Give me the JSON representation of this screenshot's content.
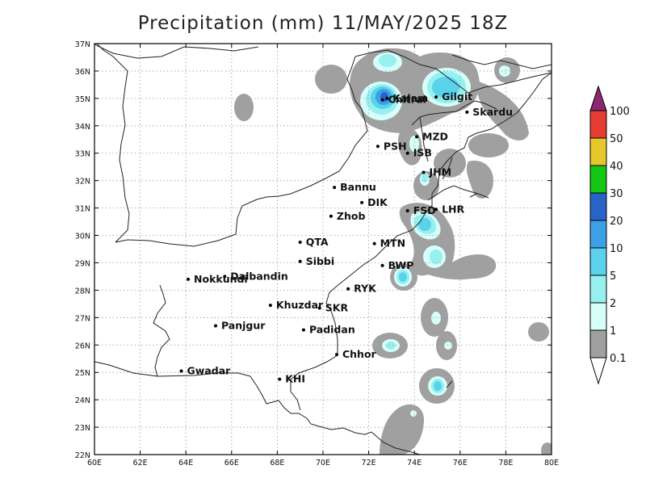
{
  "title": "Precipitation (mm) 11/MAY/2025 18Z",
  "axes": {
    "lon_labels": [
      "60E",
      "62E",
      "64E",
      "66E",
      "68E",
      "70E",
      "72E",
      "74E",
      "76E",
      "78E",
      "80E"
    ],
    "lat_labels": [
      "22N",
      "23N",
      "24N",
      "25N",
      "26N",
      "27N",
      "28N",
      "29N",
      "30N",
      "31N",
      "32N",
      "33N",
      "34N",
      "35N",
      "36N",
      "37N"
    ]
  },
  "colorbar": {
    "levels": [
      "0.1",
      "1",
      "2",
      "5",
      "10",
      "20",
      "30",
      "40",
      "50",
      "100"
    ],
    "colors": [
      "#a0a0a0",
      "#d7fffa",
      "#96f0f0",
      "#5ad2ec",
      "#3ca0e6",
      "#2864c8",
      "#15c715",
      "#e6c82d",
      "#e63c32",
      "#8c2873"
    ]
  },
  "cities": [
    {
      "name": "Chitral",
      "lon": 72.6,
      "lat": 34.95
    },
    {
      "name": "Gilgit",
      "lon": 74.95,
      "lat": 35.05
    },
    {
      "name": "Kalam",
      "lon": 72.8,
      "lat": 35.0
    },
    {
      "name": "Skardu",
      "lon": 76.3,
      "lat": 34.5
    },
    {
      "name": "MZD",
      "lon": 74.1,
      "lat": 33.6
    },
    {
      "name": "PSH",
      "lon": 72.4,
      "lat": 33.25
    },
    {
      "name": "ISB",
      "lon": 73.7,
      "lat": 33.0
    },
    {
      "name": "JHM",
      "lon": 74.4,
      "lat": 32.3
    },
    {
      "name": "Bannu",
      "lon": 70.5,
      "lat": 31.75
    },
    {
      "name": "DIK",
      "lon": 71.7,
      "lat": 31.2
    },
    {
      "name": "FSD",
      "lon": 73.7,
      "lat": 30.9
    },
    {
      "name": "LHR",
      "lon": 74.95,
      "lat": 30.95
    },
    {
      "name": "Zhob",
      "lon": 70.35,
      "lat": 30.7
    },
    {
      "name": "QTA",
      "lon": 69.0,
      "lat": 29.75
    },
    {
      "name": "MTN",
      "lon": 72.25,
      "lat": 29.7
    },
    {
      "name": "Sibbi",
      "lon": 69.0,
      "lat": 29.05
    },
    {
      "name": "BWP",
      "lon": 72.6,
      "lat": 28.9
    },
    {
      "name": "Dalbandin",
      "lon": 65.7,
      "lat": 28.5
    },
    {
      "name": "Nokkundi",
      "lon": 64.1,
      "lat": 28.4
    },
    {
      "name": "RYK",
      "lon": 71.1,
      "lat": 28.05
    },
    {
      "name": "Khuzdar",
      "lon": 67.7,
      "lat": 27.45
    },
    {
      "name": "SKR",
      "lon": 69.85,
      "lat": 27.35
    },
    {
      "name": "Padidan",
      "lon": 69.15,
      "lat": 26.55
    },
    {
      "name": "Panjgur",
      "lon": 65.3,
      "lat": 26.7
    },
    {
      "name": "Chhor",
      "lon": 70.6,
      "lat": 25.65
    },
    {
      "name": "KHI",
      "lon": 68.1,
      "lat": 24.75
    },
    {
      "name": "Gwadar",
      "lon": 63.8,
      "lat": 25.05
    }
  ]
}
